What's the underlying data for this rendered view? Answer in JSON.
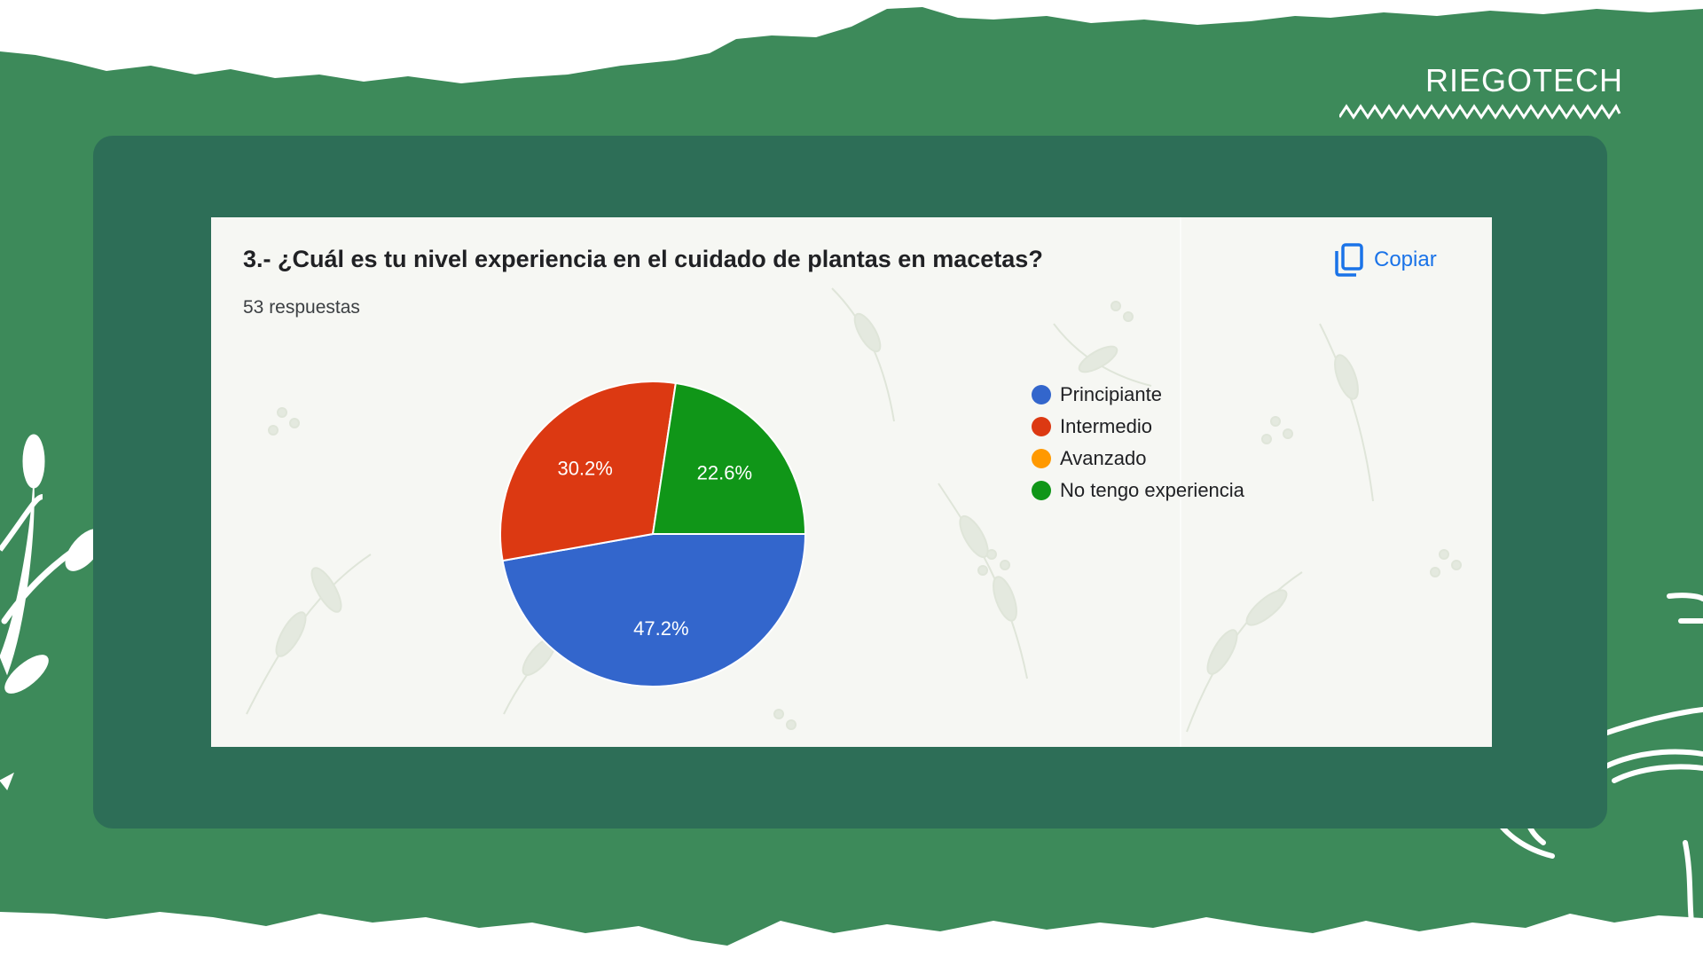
{
  "brand": {
    "name": "RIEGOTECH"
  },
  "question": {
    "title": "3.- ¿Cuál es tu nivel experiencia en el cuidado de plantas en macetas?",
    "responses": "53 respuestas"
  },
  "actions": {
    "copy_label": "Copiar",
    "copy_icon": "copy-icon"
  },
  "colors": {
    "background_green": "#3d8a5a",
    "panel_green": "#2d6e57",
    "card_background": "#f6f7f3",
    "accent_blue": "#1a73e8"
  },
  "chart_data": {
    "type": "pie",
    "categories": [
      "Principiante",
      "Intermedio",
      "Avanzado",
      "No tengo experiencia"
    ],
    "values": [
      47.2,
      30.2,
      0,
      22.6
    ],
    "labels": [
      "47.2%",
      "30.2%",
      "",
      "22.6%"
    ],
    "colors": [
      "#3366cc",
      "#dc3912",
      "#ff9900",
      "#109618"
    ],
    "legend": "right"
  }
}
